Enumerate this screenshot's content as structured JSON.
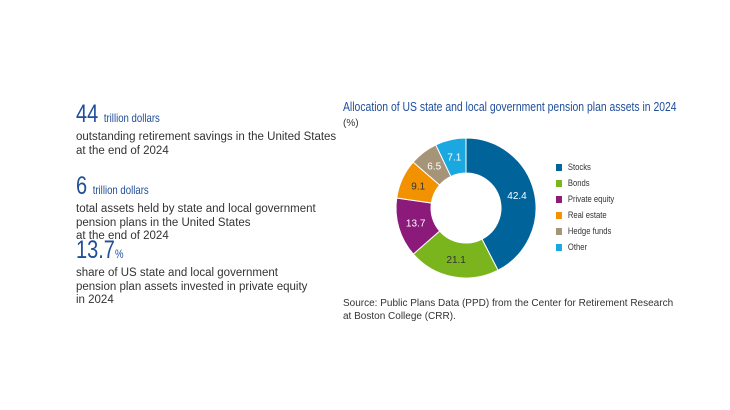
{
  "stats": [
    {
      "value": "44",
      "unit": "trillion dollars",
      "lines": [
        "outstanding retirement savings in the United States",
        "at the end of 2024"
      ]
    },
    {
      "value": "6",
      "unit": "trillion dollars",
      "lines": [
        "total assets held by state and local government",
        "pension plans in the United States",
        "at the end of 2024"
      ]
    },
    {
      "value": "13.7",
      "unit": "%",
      "lines": [
        "share of US state and local government",
        "pension plan assets invested in private equity",
        "in 2024"
      ]
    }
  ],
  "chart_data": {
    "type": "pie",
    "donut": true,
    "title": "Allocation of US state and local government pension plan assets in 2024",
    "unit_label": "(%)",
    "categories": [
      "Stocks",
      "Bonds",
      "Private equity",
      "Real estate",
      "Hedge funds",
      "Other"
    ],
    "values": [
      42.4,
      21.1,
      13.7,
      9.1,
      6.5,
      7.1
    ],
    "colors": [
      "#00649b",
      "#7ab51d",
      "#8c1a7b",
      "#f39200",
      "#a59478",
      "#1ba8e1"
    ],
    "label_colors": [
      "#ffffff",
      "#333333",
      "#ffffff",
      "#333333",
      "#ffffff",
      "#ffffff"
    ],
    "legend_position": "right"
  },
  "source": [
    "Source: Public Plans Data (PPD) from the Center for Retirement Research",
    "at Boston College (CRR)."
  ]
}
